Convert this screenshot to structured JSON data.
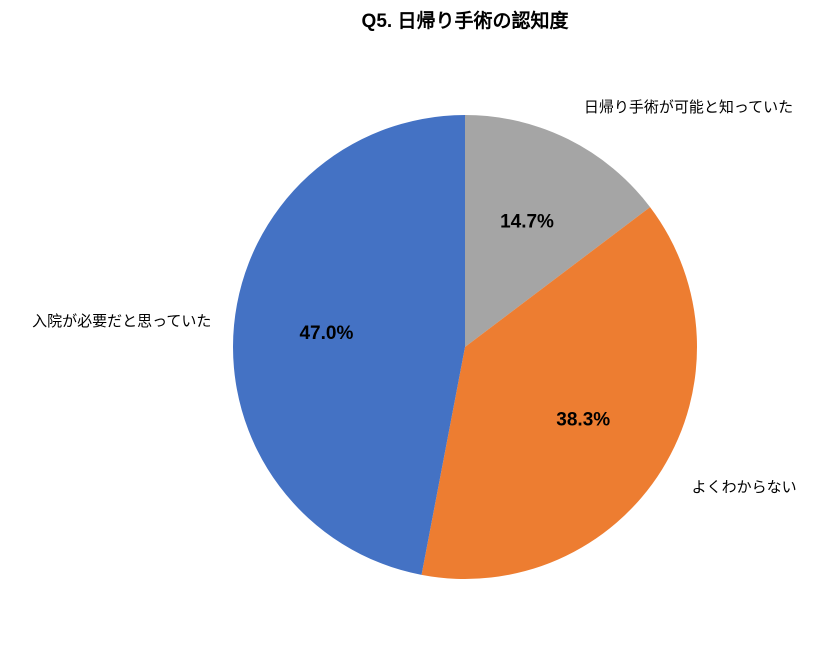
{
  "chart_data": {
    "type": "pie",
    "title": "Q5. 日帰り手術の認知度",
    "categories": [
      "日帰り手術が可能と知っていた",
      "よくわからない",
      "入院が必要だと思っていた"
    ],
    "values": [
      14.7,
      38.3,
      47.0
    ],
    "value_labels": [
      "14.7%",
      "38.3%",
      "47.0%"
    ],
    "colors": [
      "#a5a5a5",
      "#ed7d31",
      "#4472c4"
    ]
  }
}
